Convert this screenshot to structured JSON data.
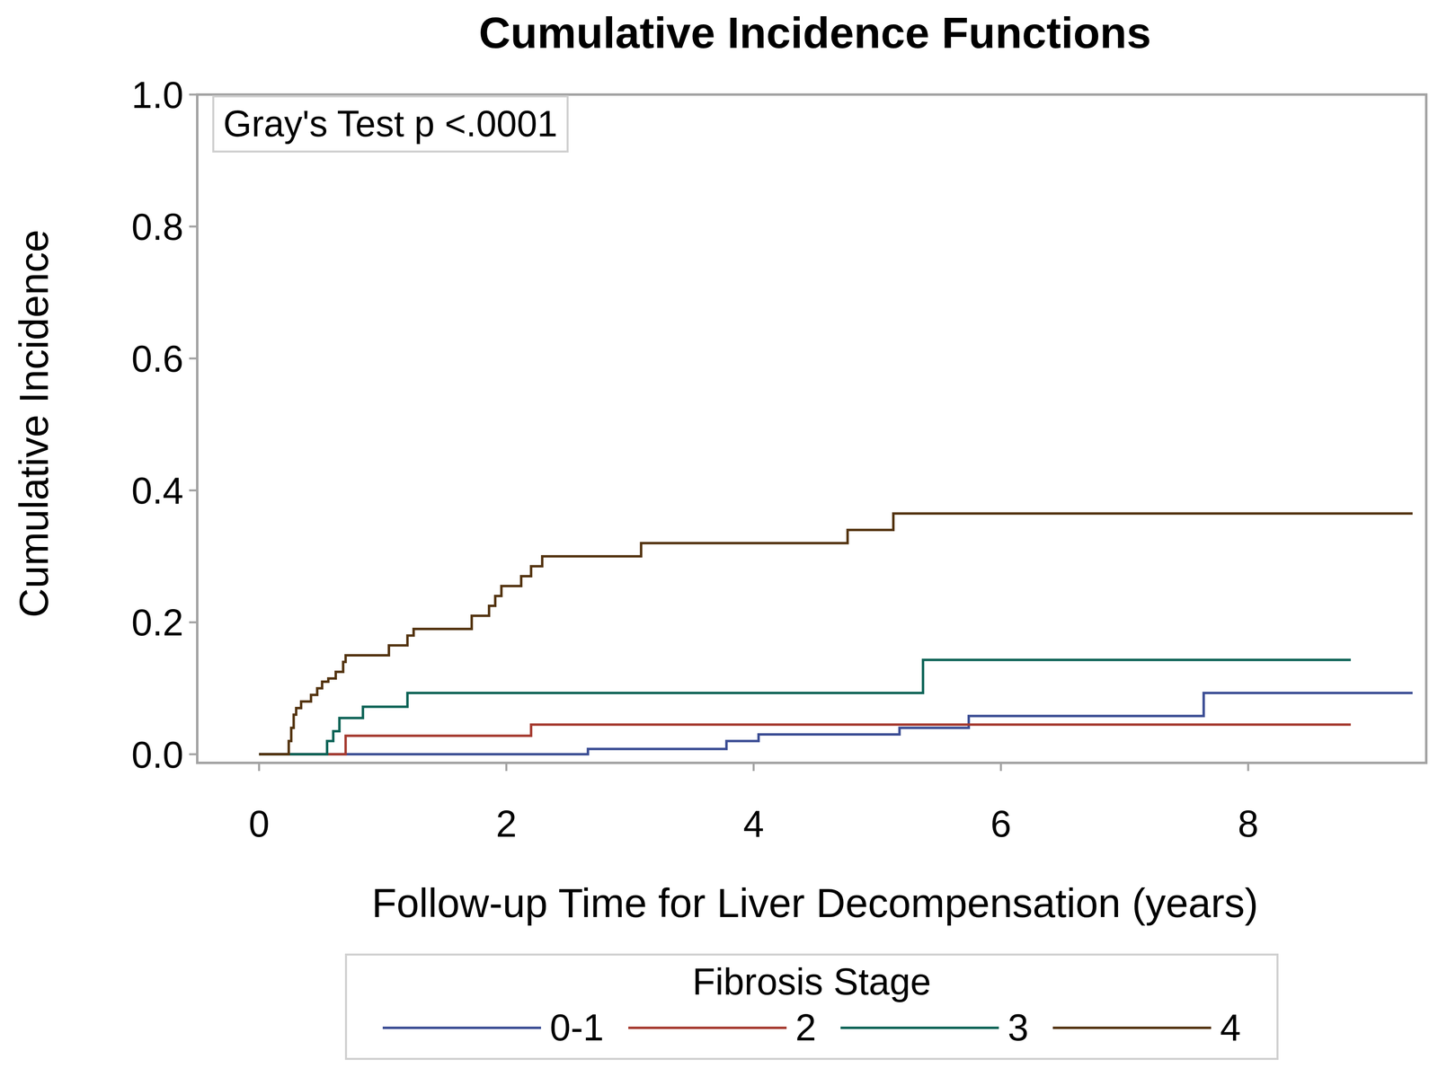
{
  "chart_data": {
    "type": "line",
    "title": "Cumulative Incidence Functions",
    "x_label": "Follow-up Time for Liver Decompensation (years)",
    "y_label": "Cumulative Incidence",
    "annotation": "Gray's Test p <.0001",
    "legend_title": "Fibrosis Stage",
    "legend": "bottom",
    "line_style": "step",
    "grid": false,
    "xlim": [
      -0.5,
      9.44
    ],
    "xticks": [
      0,
      2,
      4,
      6,
      8
    ],
    "ylim": [
      -0.013,
      1.0
    ],
    "yticks": [
      {
        "value": 0,
        "label": "0.0"
      },
      {
        "value": 0.2,
        "label": "0.2"
      },
      {
        "value": 0.4,
        "label": "0.4"
      },
      {
        "value": 0.6,
        "label": "0.6"
      },
      {
        "value": 0.8,
        "label": "0.8"
      },
      {
        "value": 1.0,
        "label": "1.0"
      }
    ],
    "series": [
      {
        "name": "0-1",
        "color": "#3b4d94",
        "x": [
          0,
          2.66,
          3.78,
          4.04,
          5.18,
          5.74,
          7.64,
          9.33
        ],
        "values": [
          0,
          0.008,
          0.02,
          0.03,
          0.04,
          0.058,
          0.093,
          0.093
        ]
      },
      {
        "name": "2",
        "color": "#a53a2f",
        "x": [
          0,
          0.7,
          2.2,
          8.83
        ],
        "values": [
          0,
          0.028,
          0.045,
          0.045
        ]
      },
      {
        "name": "3",
        "color": "#0b6356",
        "x": [
          0,
          0.55,
          0.6,
          0.65,
          0.84,
          1.2,
          5.37,
          8.83
        ],
        "values": [
          0,
          0.02,
          0.035,
          0.055,
          0.072,
          0.093,
          0.143,
          0.143
        ]
      },
      {
        "name": "4",
        "color": "#53330f",
        "x": [
          0,
          0.24,
          0.26,
          0.28,
          0.3,
          0.34,
          0.42,
          0.47,
          0.51,
          0.56,
          0.62,
          0.68,
          0.7,
          1.05,
          1.2,
          1.25,
          1.72,
          1.86,
          1.91,
          1.96,
          2.12,
          2.2,
          2.29,
          3.09,
          4.76,
          5.13,
          9.33
        ],
        "values": [
          0,
          0.02,
          0.04,
          0.06,
          0.07,
          0.08,
          0.09,
          0.1,
          0.11,
          0.115,
          0.125,
          0.14,
          0.15,
          0.165,
          0.18,
          0.19,
          0.21,
          0.225,
          0.24,
          0.255,
          0.27,
          0.285,
          0.3,
          0.32,
          0.34,
          0.365,
          0.365
        ]
      }
    ]
  }
}
